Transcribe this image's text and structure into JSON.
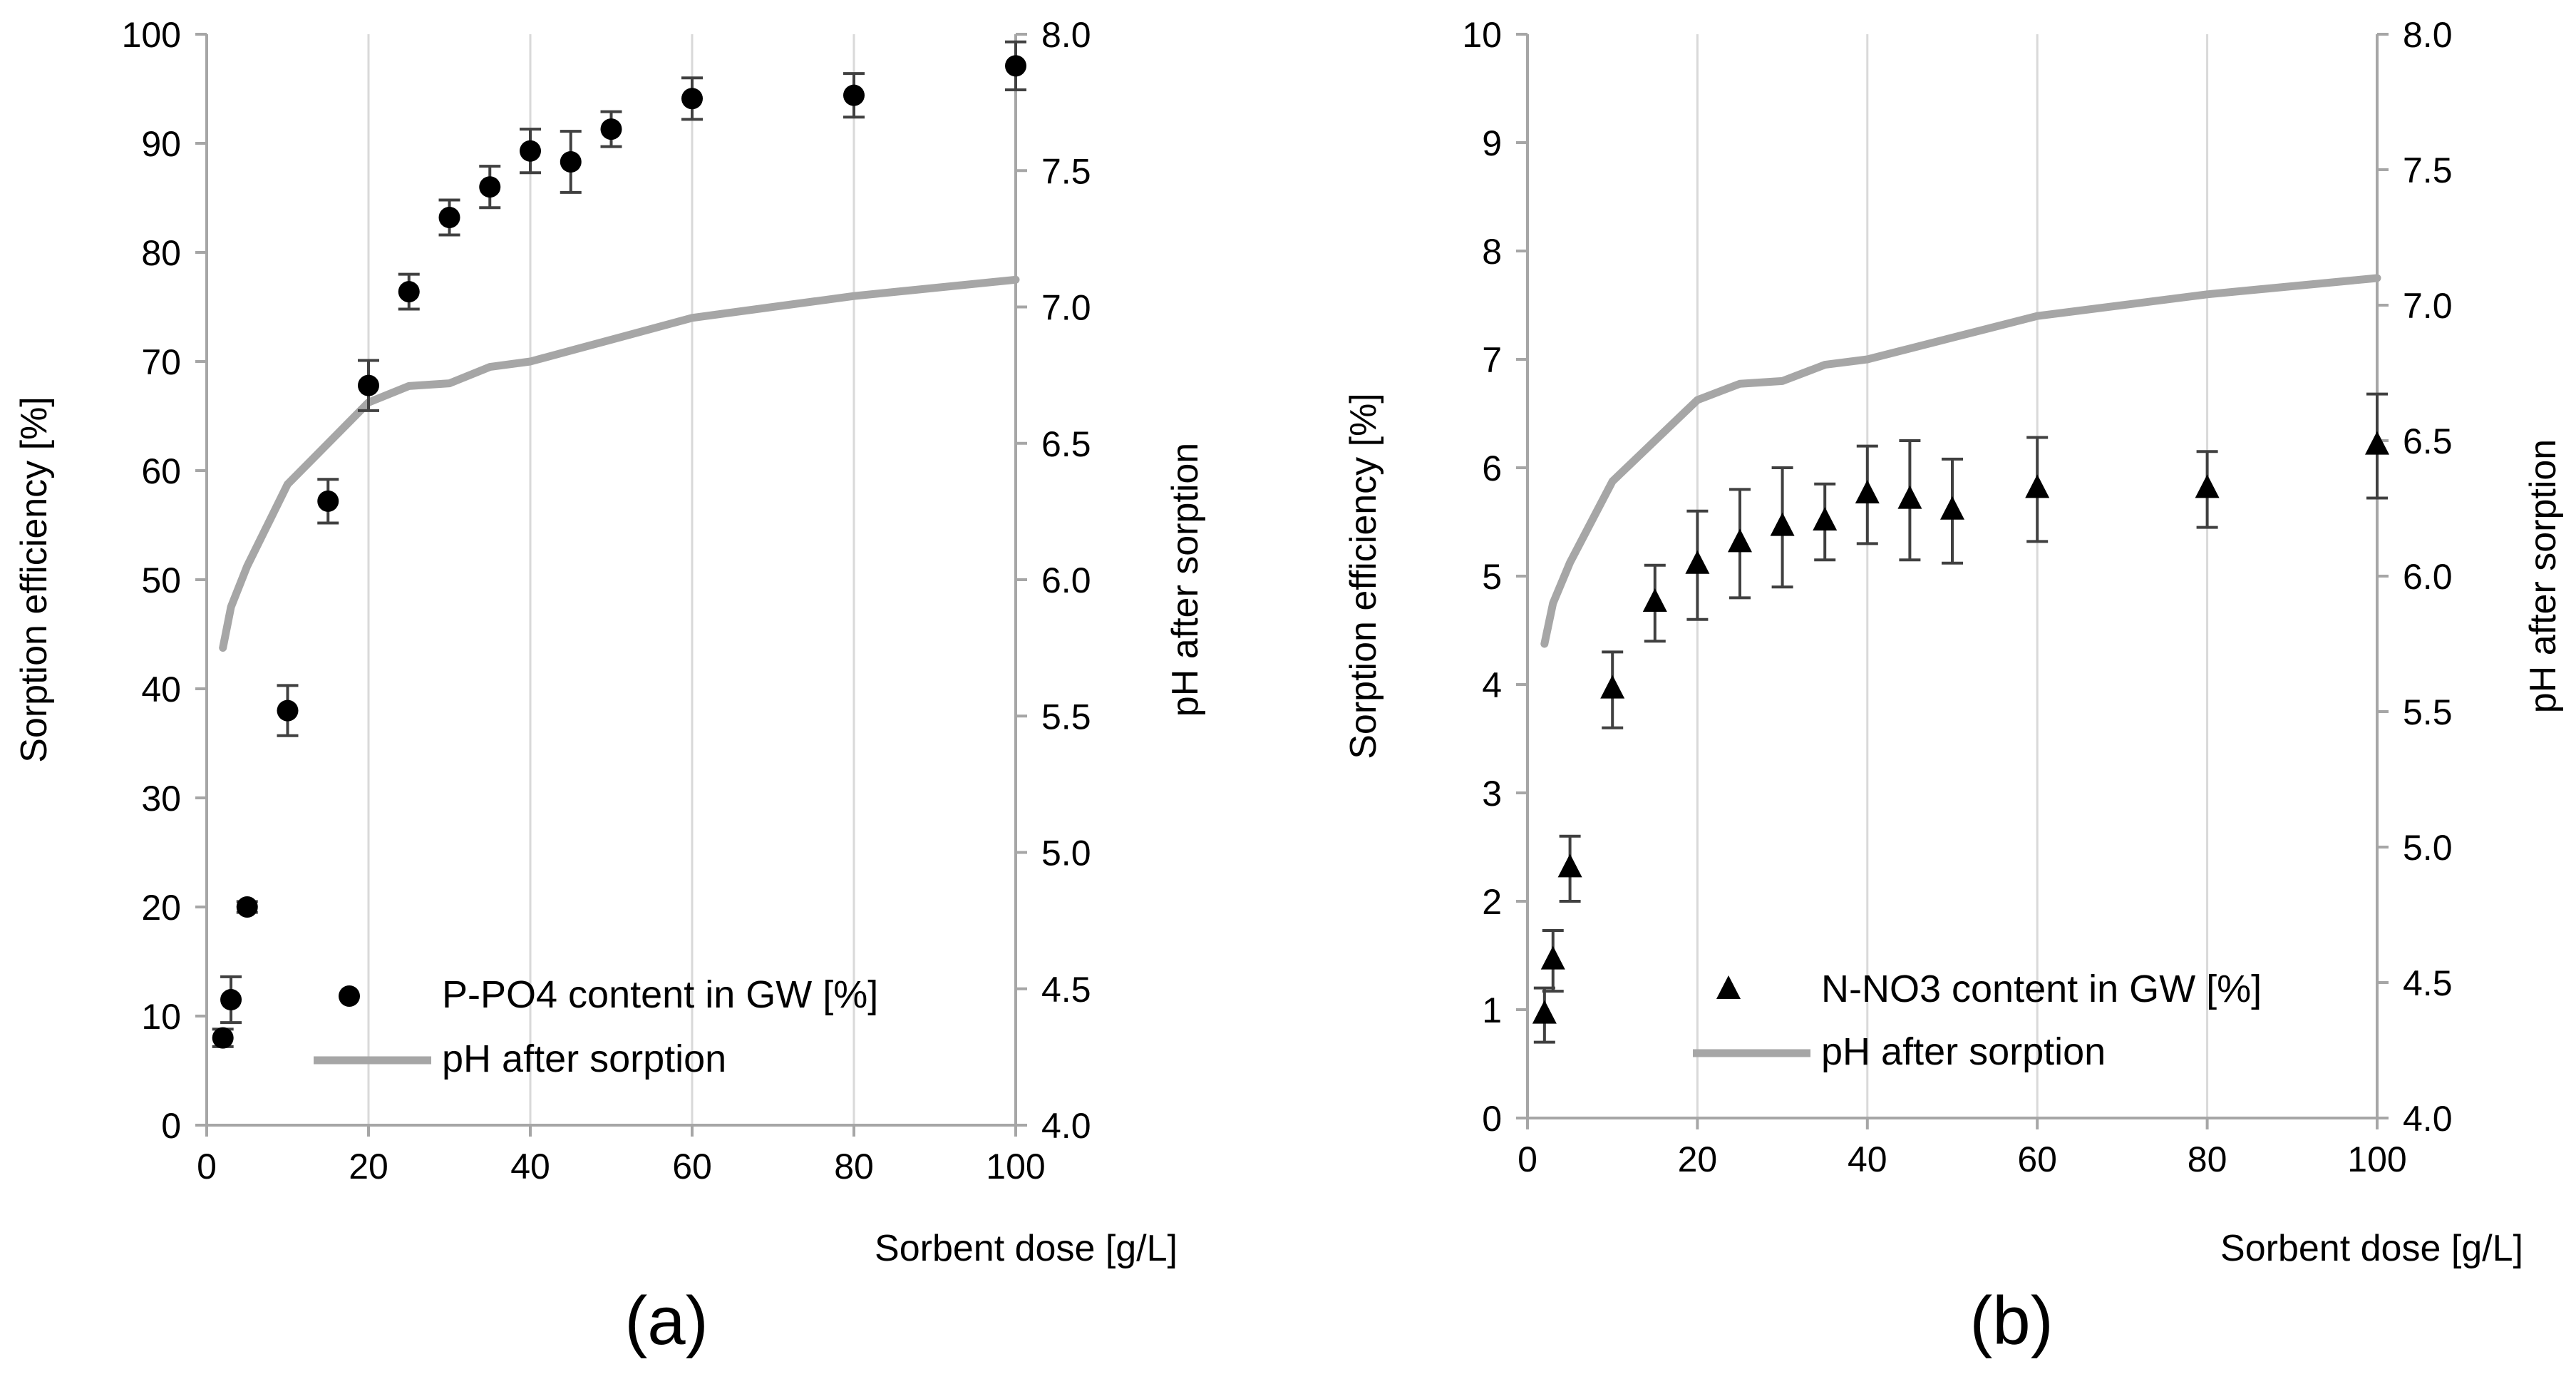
{
  "chart_data": [
    {
      "type": "scatter",
      "panel_label": "(a)",
      "xlabel": "Sorbent dose [g/L]",
      "ylabel": "Sorption efficiency [%]",
      "y2label": "pH after sorption",
      "xlim": [
        0,
        100
      ],
      "xticks": [
        0,
        20,
        40,
        60,
        80,
        100
      ],
      "ylim": [
        0,
        100
      ],
      "yticks": [
        0,
        10,
        20,
        30,
        40,
        50,
        60,
        70,
        80,
        90,
        100
      ],
      "y2lim": [
        4.0,
        8.0
      ],
      "y2ticks": [
        "4.0",
        "4.5",
        "5.0",
        "5.5",
        "6.0",
        "6.5",
        "7.0",
        "7.5",
        "8.0"
      ],
      "legend_position": "bottom-right",
      "series": [
        {
          "name": "P-PO4 content in GW [%]",
          "axis": "left",
          "marker": "circle",
          "color": "#000000",
          "x": [
            2,
            3,
            5,
            10,
            15,
            20,
            25,
            30,
            35,
            40,
            45,
            50,
            60,
            80,
            100
          ],
          "y": [
            8,
            11.5,
            20,
            38,
            57.2,
            67.8,
            76.4,
            83.2,
            86,
            89.3,
            88.3,
            91.3,
            94.1,
            94.4,
            97.1
          ],
          "err": [
            0.8,
            2.1,
            0.5,
            2.3,
            2.0,
            2.3,
            1.6,
            1.6,
            1.9,
            2.0,
            2.8,
            1.6,
            1.9,
            2.0,
            2.2
          ]
        },
        {
          "name": "pH after sorption",
          "axis": "right",
          "style": "line",
          "color": "#a6a6a6",
          "x": [
            2,
            3,
            5,
            10,
            15,
            20,
            25,
            30,
            35,
            40,
            45,
            50,
            60,
            80,
            100
          ],
          "y": [
            5.75,
            5.9,
            6.05,
            6.35,
            6.5,
            6.65,
            6.71,
            6.72,
            6.78,
            6.8,
            6.84,
            6.88,
            6.96,
            7.04,
            7.1
          ]
        }
      ]
    },
    {
      "type": "scatter",
      "panel_label": "(b)",
      "xlabel": "Sorbent dose [g/L]",
      "ylabel": "Sorption efficiency [%]",
      "y2label": "pH after sorption",
      "xlim": [
        0,
        100
      ],
      "xticks": [
        0,
        20,
        40,
        60,
        80,
        100
      ],
      "ylim": [
        0,
        10
      ],
      "yticks": [
        0,
        1,
        2,
        3,
        4,
        5,
        6,
        7,
        8,
        9,
        10
      ],
      "y2lim": [
        4.0,
        8.0
      ],
      "y2ticks": [
        "4.0",
        "4.5",
        "5.0",
        "5.5",
        "6.0",
        "6.5",
        "7.0",
        "7.5",
        "8.0"
      ],
      "legend_position": "bottom-right",
      "series": [
        {
          "name": "N-NO3 content in GW [%]",
          "axis": "left",
          "marker": "triangle",
          "color": "#000000",
          "x": [
            2,
            3,
            5,
            10,
            15,
            20,
            25,
            30,
            35,
            40,
            45,
            50,
            60,
            80,
            100
          ],
          "y": [
            0.95,
            1.45,
            2.3,
            3.95,
            4.75,
            5.1,
            5.3,
            5.45,
            5.5,
            5.75,
            5.7,
            5.6,
            5.8,
            5.8,
            6.2
          ],
          "err": [
            0.25,
            0.28,
            0.3,
            0.35,
            0.35,
            0.5,
            0.5,
            0.55,
            0.35,
            0.45,
            0.55,
            0.48,
            0.48,
            0.35,
            0.48
          ]
        },
        {
          "name": "pH after sorption",
          "axis": "right",
          "style": "line",
          "color": "#a6a6a6",
          "x": [
            2,
            3,
            5,
            10,
            15,
            20,
            25,
            30,
            35,
            40,
            45,
            50,
            60,
            80,
            100
          ],
          "y": [
            5.75,
            5.9,
            6.05,
            6.35,
            6.5,
            6.65,
            6.71,
            6.72,
            6.78,
            6.8,
            6.84,
            6.88,
            6.96,
            7.04,
            7.1
          ]
        }
      ]
    }
  ]
}
